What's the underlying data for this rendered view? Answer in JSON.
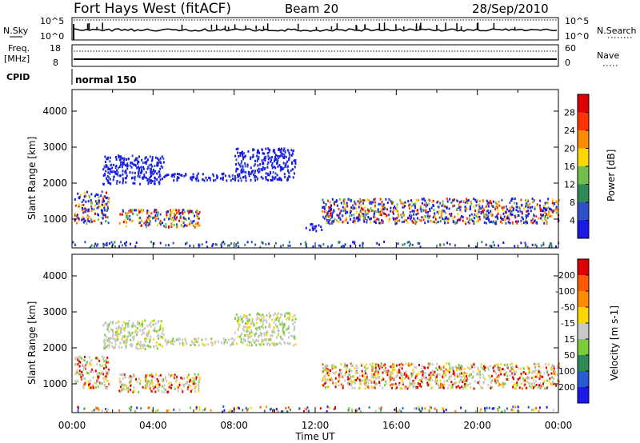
{
  "header": {
    "title": "Fort Hays West (fitACF)",
    "beam": "Beam 20",
    "date": "28/Sep/2010"
  },
  "top_panels": {
    "nsky_label": "N.Sky",
    "nsky_ticks": [
      "10^5",
      "10^0"
    ],
    "nsearch_label": "N.Search",
    "nsearch_ticks": [
      "10^5",
      "10^0"
    ],
    "freq_label": "Freq.",
    "freq_unit": "[MHz]",
    "freq_ticks": [
      "18",
      "8"
    ],
    "nave_label": "Nave",
    "nave_ticks": [
      "60",
      "0"
    ],
    "cpid_label": "CPID",
    "cpid_value": "normal 150"
  },
  "chart_data": [
    {
      "type": "heatmap",
      "name": "power",
      "ylabel": "Slant Range [km]",
      "ylim": [
        200,
        4600
      ],
      "yticks": [
        "1000",
        "2000",
        "3000",
        "4000"
      ],
      "xlim_hours": [
        0,
        24
      ],
      "colorbar": {
        "label": "Power [dB]",
        "ticks": [
          "4",
          "8",
          "12",
          "16",
          "20",
          "24",
          "28"
        ],
        "colors": [
          "#1a1ae6",
          "#3050c8",
          "#2e8b57",
          "#6fbf4a",
          "#ffd700",
          "#ff8c00",
          "#ff3300",
          "#dd0000"
        ]
      },
      "echo_regions": [
        {
          "t": [
            0.1,
            1.8
          ],
          "range": [
            900,
            1800
          ],
          "level": "high"
        },
        {
          "t": [
            1.5,
            4.5
          ],
          "range": [
            2000,
            2800
          ],
          "level": "low"
        },
        {
          "t": [
            4.5,
            8.0
          ],
          "range": [
            2100,
            2300
          ],
          "level": "low"
        },
        {
          "t": [
            8.0,
            11.0
          ],
          "range": [
            2100,
            3000
          ],
          "level": "low"
        },
        {
          "t": [
            2.3,
            6.3
          ],
          "range": [
            800,
            1300
          ],
          "level": "mixed"
        },
        {
          "t": [
            11.5,
            12.3
          ],
          "range": [
            700,
            900
          ],
          "level": "low"
        },
        {
          "t": [
            12.3,
            24.0
          ],
          "range": [
            900,
            1600
          ],
          "level": "high"
        }
      ]
    },
    {
      "type": "heatmap",
      "name": "velocity",
      "ylabel": "Slant Range [km]",
      "ylim": [
        200,
        4600
      ],
      "yticks": [
        "1000",
        "2000",
        "3000",
        "4000"
      ],
      "xlim_hours": [
        0,
        24
      ],
      "colorbar": {
        "label": "Velocity [m s-1]",
        "ticks": [
          "200",
          "100",
          "50",
          "15",
          "-15",
          "-50",
          "-100",
          "-200"
        ],
        "colors": [
          "#1a1ae6",
          "#2a5ad0",
          "#2e8b57",
          "#7ccd3c",
          "#c8c8c8",
          "#ffd700",
          "#ff8c00",
          "#ff5a00",
          "#dd0000"
        ]
      },
      "echo_regions": [
        {
          "t": [
            0.1,
            1.8
          ],
          "range": [
            900,
            1800
          ],
          "level": "mixed"
        },
        {
          "t": [
            1.5,
            4.5
          ],
          "range": [
            2000,
            2800
          ],
          "level": "slow"
        },
        {
          "t": [
            4.5,
            8.0
          ],
          "range": [
            2100,
            2300
          ],
          "level": "slow"
        },
        {
          "t": [
            8.0,
            11.0
          ],
          "range": [
            2100,
            3000
          ],
          "level": "slow"
        },
        {
          "t": [
            2.3,
            6.3
          ],
          "range": [
            800,
            1300
          ],
          "level": "mixed"
        },
        {
          "t": [
            12.3,
            24.0
          ],
          "range": [
            900,
            1600
          ],
          "level": "mixed"
        }
      ]
    }
  ],
  "x_axis": {
    "tick_labels": [
      "00:00",
      "04:00",
      "08:00",
      "12:00",
      "16:00",
      "20:00",
      "00:00"
    ],
    "xlabel": "Time UT"
  },
  "colors": {
    "frame": "#000000",
    "background": "#ffffff"
  }
}
